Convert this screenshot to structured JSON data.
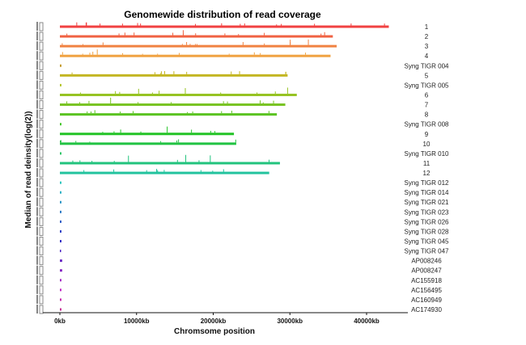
{
  "chart_data": {
    "type": "bar",
    "orientation": "horizontal",
    "title": "Genomewide distribution of read coverage",
    "xlabel": "Chromsome position",
    "ylabel": "Median of read deinsity(log(2))",
    "xlim": [
      0,
      46000
    ],
    "x_unit": "kb",
    "x_ticks": [
      "0kb",
      "10000kb",
      "20000kb",
      "30000kb",
      "40000kb"
    ],
    "x_tick_values": [
      0,
      10000,
      20000,
      30000,
      40000
    ],
    "grid": false,
    "legend": "none",
    "categories": [
      "1",
      "2",
      "3",
      "4",
      "Syng  TIGR  004",
      "5",
      "Syng  TIGR  005",
      "6",
      "7",
      "8",
      "Syng  TIGR  008",
      "9",
      "10",
      "Syng  TIGR  010",
      "11",
      "12",
      "Syng  TIGR  012",
      "Syng  TIGR  014",
      "Syng  TIGR  021",
      "Syng  TIGR  023",
      "Syng  TIGR  026",
      "Syng  TIGR  028",
      "Syng  TIGR  045",
      "Syng  TIGR  047",
      "AP008246",
      "AP008247",
      "AC155918",
      "AC156495",
      "AC160949",
      "AC174930"
    ],
    "lengths_kb": [
      42900,
      35600,
      36100,
      35300,
      200,
      29700,
      200,
      30900,
      29400,
      28300,
      200,
      22700,
      23000,
      200,
      28700,
      27300,
      200,
      200,
      200,
      200,
      200,
      200,
      200,
      100,
      300,
      300,
      200,
      200,
      200,
      200
    ]
  }
}
